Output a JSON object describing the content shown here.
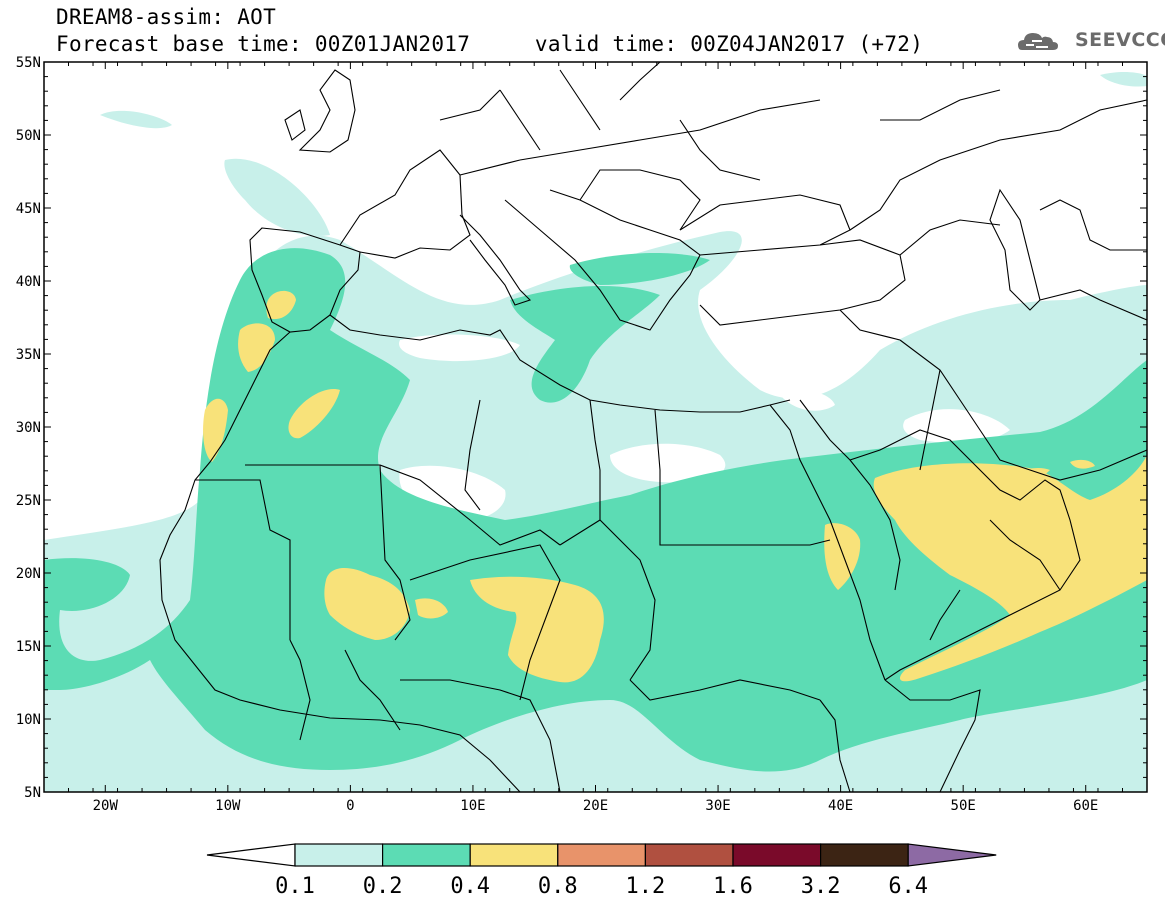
{
  "header": {
    "line1": "DREAM8-assim: AOT",
    "line2": "Forecast base time: 00Z01JAN2017     valid time: 00Z04JAN2017 (+72)"
  },
  "logo": {
    "icon": "cloud-logo-icon",
    "text": "SEEVCCC"
  },
  "map": {
    "lon_range": [
      -25,
      65
    ],
    "lat_range": [
      5,
      55
    ],
    "lat_ticks": [
      "55N",
      "50N",
      "45N",
      "40N",
      "35N",
      "30N",
      "25N",
      "20N",
      "15N",
      "10N",
      "5N"
    ],
    "lon_ticks": [
      "20W",
      "10W",
      "0",
      "10E",
      "20E",
      "30E",
      "40E",
      "50E",
      "60E"
    ]
  },
  "colorbar": {
    "colors": [
      "#ffffff",
      "#c8f0ea",
      "#5cdcb4",
      "#f8e27a",
      "#e8936a",
      "#b05040",
      "#7a0a2a",
      "#3c2414",
      "#8d6aa4"
    ],
    "labels": [
      "0.1",
      "0.2",
      "0.4",
      "0.8",
      "1.2",
      "1.6",
      "3.2",
      "6.4"
    ]
  }
}
